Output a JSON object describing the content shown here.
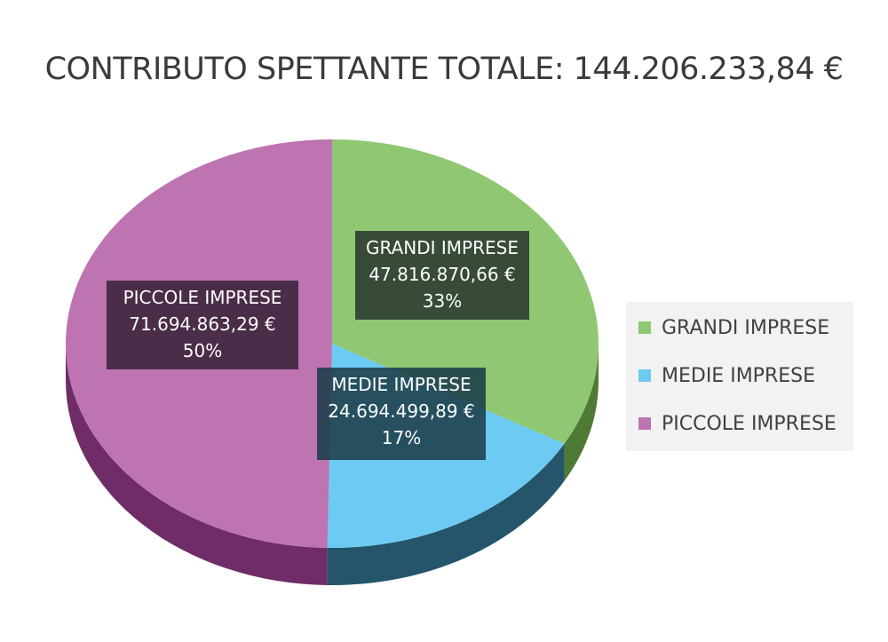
{
  "chart_data": {
    "type": "pie",
    "title": "CONTRIBUTO SPETTANTE TOTALE: 144.206.233,84 €",
    "slices": [
      {
        "name": "GRANDI IMPRESE",
        "value": 47816870.66,
        "value_label": "47.816.870,66 €",
        "percent_label": "33%",
        "color": "#8fc772",
        "side_color": "#4f7a36"
      },
      {
        "name": "MEDIE IMPRESE",
        "value": 24694499.89,
        "value_label": "24.694.499,89 €",
        "percent_label": "17%",
        "color": "#6dcaf2",
        "side_color": "#24556a"
      },
      {
        "name": "PICCOLE IMPRESE",
        "value": 71694863.29,
        "value_label": "71.694.863,29 €",
        "percent_label": "50%",
        "color": "#bd74b1",
        "side_color": "#6f2c66"
      }
    ],
    "legend": {
      "position": "right",
      "items": [
        "GRANDI IMPRESE",
        "MEDIE IMPRESE",
        "PICCOLE IMPRESE"
      ]
    }
  }
}
